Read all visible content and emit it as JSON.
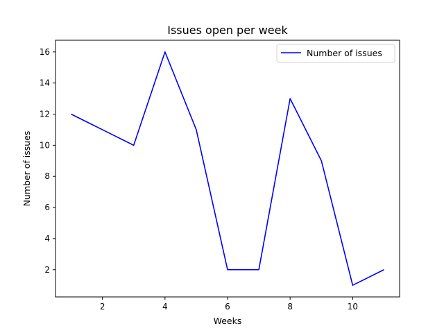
{
  "chart_data": {
    "type": "line",
    "title": "Issues open per week",
    "xlabel": "Weeks",
    "ylabel": "Number of issues",
    "x": [
      1,
      2,
      3,
      4,
      5,
      6,
      7,
      8,
      9,
      10,
      11
    ],
    "series": [
      {
        "name": "Number of issues",
        "color": "#0000ff",
        "values": [
          12,
          11,
          10,
          16,
          11,
          2,
          2,
          13,
          9,
          1,
          2
        ]
      }
    ],
    "xlim": [
      0.5,
      11.5
    ],
    "ylim": [
      0.25,
      16.75
    ],
    "xticks": [
      2,
      4,
      6,
      8,
      10
    ],
    "yticks": [
      2,
      4,
      6,
      8,
      10,
      12,
      14,
      16
    ],
    "grid": false,
    "legend_position": "top-right"
  }
}
